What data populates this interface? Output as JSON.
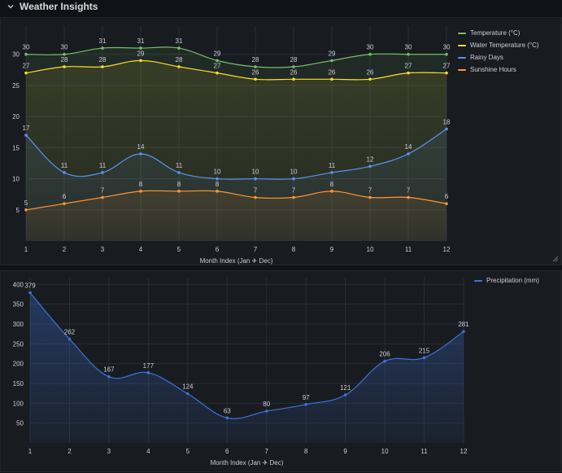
{
  "row": {
    "title": "Weather Insights",
    "chevron_icon": "chevron-down-icon"
  },
  "colors": {
    "temperature": "#73bf69",
    "water_temperature": "#fade2a",
    "rainy_days": "#5794f2",
    "sunshine_hours": "#ff9830",
    "precipitation": "#3d71d9",
    "grid": "#2a2d33",
    "axis_text": "#ccccdc"
  },
  "chart_data": [
    {
      "type": "line",
      "x": [
        1,
        2,
        3,
        4,
        5,
        6,
        7,
        8,
        9,
        10,
        11,
        12
      ],
      "xlabel": "Month Index (Jan ✈ Dec)",
      "ylabel": "",
      "ylim": [
        0,
        33
      ],
      "yticks": [
        5,
        10,
        15,
        20,
        25,
        30
      ],
      "grid": true,
      "legend_placement": "right",
      "series": [
        {
          "name": "Temperature (°C)",
          "color": "#73bf69",
          "values": [
            30,
            30,
            31,
            31,
            31,
            29,
            28,
            28,
            29,
            30,
            30,
            30
          ]
        },
        {
          "name": "Water Temperature (°C)",
          "color": "#fade2a",
          "values": [
            27,
            28,
            28,
            29,
            28,
            27,
            26,
            26,
            26,
            26,
            27,
            27
          ]
        },
        {
          "name": "Rainy Days",
          "color": "#5794f2",
          "values": [
            17,
            11,
            11,
            14,
            11,
            10,
            10,
            10,
            11,
            12,
            14,
            18
          ]
        },
        {
          "name": "Sunshine Hours",
          "color": "#ff9830",
          "values": [
            5,
            6,
            7,
            8,
            8,
            8,
            7,
            7,
            8,
            7,
            7,
            6
          ]
        }
      ]
    },
    {
      "type": "area",
      "x": [
        1,
        2,
        3,
        4,
        5,
        6,
        7,
        8,
        9,
        10,
        11,
        12
      ],
      "xlabel": "Month Index (Jan ✈ Dec)",
      "ylabel": "",
      "ylim": [
        0,
        400
      ],
      "yticks": [
        50,
        100,
        150,
        200,
        250,
        300,
        350,
        400
      ],
      "grid": true,
      "legend_placement": "right",
      "series": [
        {
          "name": "Precipitation (mm)",
          "color": "#3d71d9",
          "values": [
            379,
            262,
            167,
            177,
            124,
            63,
            80,
            97,
            121,
            206,
            215,
            281
          ]
        }
      ]
    }
  ]
}
